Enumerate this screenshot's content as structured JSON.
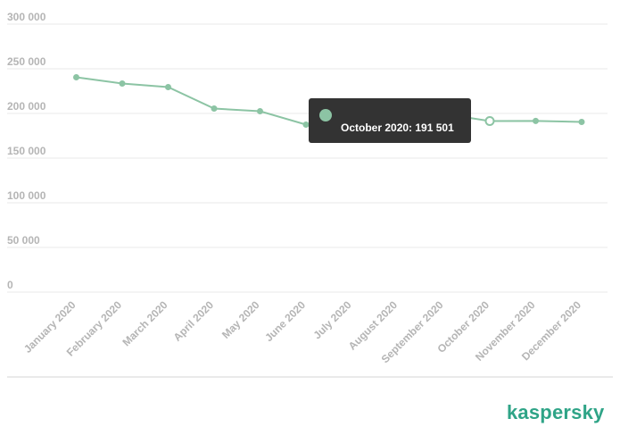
{
  "chart_data": {
    "type": "line",
    "categories": [
      "January 2020",
      "February 2020",
      "March 2020",
      "April 2020",
      "May 2020",
      "June 2020",
      "July 2020",
      "August 2020",
      "September 2020",
      "October 2020",
      "November 2020",
      "December 2020"
    ],
    "values": [
      240500,
      233500,
      229500,
      205500,
      202500,
      187500,
      186500,
      193000,
      199500,
      191501,
      191600,
      190500
    ],
    "yticks": [
      {
        "value": 0,
        "label": "0"
      },
      {
        "value": 50000,
        "label": "50 000"
      },
      {
        "value": 100000,
        "label": "100 000"
      },
      {
        "value": 150000,
        "label": "150 000"
      },
      {
        "value": 200000,
        "label": "200 000"
      },
      {
        "value": 250000,
        "label": "250 000"
      },
      {
        "value": 300000,
        "label": "300 000"
      }
    ],
    "ylim": [
      0,
      300000
    ],
    "grid": true,
    "color": "#8cc4a4",
    "highlight_index": 9,
    "tooltip": {
      "label": "October 2020: 191 501"
    }
  },
  "brand": {
    "logo_text": "kaspersky",
    "color": "#2fa487"
  }
}
